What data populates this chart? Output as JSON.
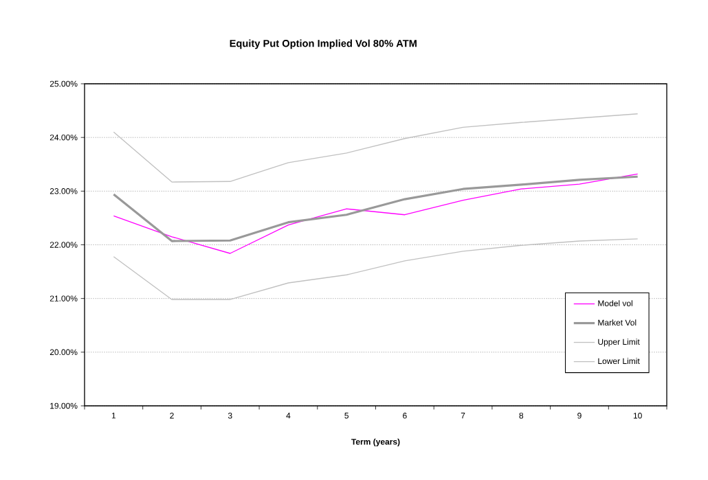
{
  "chart_data": {
    "type": "line",
    "title": "Equity Put Option Implied Vol 80% ATM",
    "xlabel": "Term (years)",
    "categories": [
      "1",
      "2",
      "3",
      "4",
      "5",
      "6",
      "7",
      "8",
      "9",
      "10"
    ],
    "series": [
      {
        "name": "Model vol",
        "color": "#ff00ff",
        "values": [
          22.54,
          22.15,
          21.84,
          22.37,
          22.67,
          22.56,
          22.83,
          23.04,
          23.13,
          23.32
        ]
      },
      {
        "name": "Market Vol",
        "color": "#999999",
        "values": [
          22.94,
          22.07,
          22.08,
          22.42,
          22.56,
          22.85,
          23.04,
          23.12,
          23.21,
          23.27
        ]
      },
      {
        "name": "Upper Limit",
        "color": "#c0c0c0",
        "values": [
          24.1,
          23.17,
          23.18,
          23.53,
          23.71,
          23.98,
          24.19,
          24.28,
          24.36,
          24.44
        ]
      },
      {
        "name": "Lower Limit",
        "color": "#c0c0c0",
        "values": [
          21.78,
          20.98,
          20.98,
          21.29,
          21.44,
          21.7,
          21.88,
          21.99,
          22.07,
          22.11
        ]
      }
    ],
    "ylim": [
      19,
      25
    ],
    "yticks": [
      {
        "value": 19,
        "label": "19.00%"
      },
      {
        "value": 20,
        "label": "20.00%"
      },
      {
        "value": 21,
        "label": "21.00%"
      },
      {
        "value": 22,
        "label": "22.00%"
      },
      {
        "value": 23,
        "label": "23.00%"
      },
      {
        "value": 24,
        "label": "24.00%"
      },
      {
        "value": 25,
        "label": "25.00%"
      }
    ],
    "grid": "y",
    "legend": "bottom right",
    "marker": "none",
    "line_style": "solid"
  }
}
